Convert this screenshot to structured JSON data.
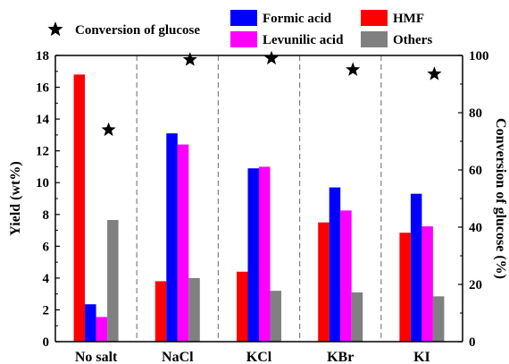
{
  "chart_data": {
    "type": "bar",
    "categories": [
      "No salt",
      "NaCl",
      "KCl",
      "KBr",
      "KI"
    ],
    "series": [
      {
        "name": "HMF",
        "color": "#ff0000",
        "values": [
          16.8,
          3.8,
          4.4,
          7.5,
          6.85
        ]
      },
      {
        "name": "Formic acid",
        "color": "#0000ff",
        "values": [
          2.35,
          13.1,
          10.9,
          9.7,
          9.3
        ]
      },
      {
        "name": "Levunilic acid",
        "color": "#ff00ff",
        "values": [
          1.55,
          12.4,
          11.0,
          8.25,
          7.25
        ]
      },
      {
        "name": "Others",
        "color": "#808080",
        "values": [
          7.65,
          4.0,
          3.2,
          3.1,
          2.85
        ]
      }
    ],
    "secondary_series": {
      "name": "Conversion of glucose",
      "marker": "star",
      "color": "#000000",
      "values": [
        74,
        98.5,
        99,
        95,
        93.5
      ]
    },
    "ylabel": "Yield (wt%)",
    "ylim": [
      0,
      18
    ],
    "yticks": [
      0,
      2,
      4,
      6,
      8,
      10,
      12,
      14,
      16,
      18
    ],
    "y2label": "Conversion of glucose (%)",
    "y2lim": [
      0,
      100
    ],
    "y2ticks": [
      0,
      20,
      40,
      60,
      80,
      100
    ],
    "category_dividers": "dashed",
    "legend": "top, outside plot",
    "grid": false
  }
}
